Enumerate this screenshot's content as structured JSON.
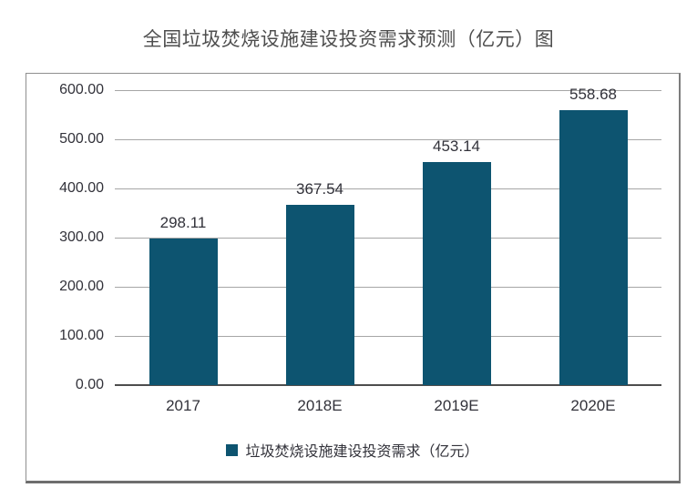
{
  "page": {
    "title": "全国垃圾焚烧设施建设投资需求预测（亿元）图"
  },
  "chart_data": {
    "type": "bar",
    "title": "全国垃圾焚烧设施建设投资需求预测（亿元）图",
    "categories": [
      "2017",
      "2018E",
      "2019E",
      "2020E"
    ],
    "values": [
      298.11,
      367.54,
      453.14,
      558.68
    ],
    "value_labels": [
      "298.11",
      "367.54",
      "453.14",
      "558.68"
    ],
    "xlabel": "",
    "ylabel": "",
    "ylim": [
      0,
      600
    ],
    "y_tick_values": [
      600,
      500,
      400,
      300,
      200,
      100,
      0
    ],
    "y_tick_labels": [
      "600.00",
      "500.00",
      "400.00",
      "300.00",
      "200.00",
      "100.00",
      "0.00"
    ],
    "grid": true,
    "legend_position": "bottom",
    "legend": [
      {
        "label": "垃圾焚烧设施建设投资需求（亿元）",
        "color": "#0d5470"
      }
    ],
    "bar_color": "#0d5470",
    "gridline_color": "#a6a6a6",
    "axis_line_color": "#4d4d4d",
    "text_color": "#32323a",
    "title_color": "#4d4d4d"
  }
}
